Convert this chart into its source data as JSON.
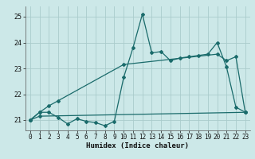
{
  "xlabel": "Humidex (Indice chaleur)",
  "bg_color": "#cce8e8",
  "line_color": "#1a6b6b",
  "grid_color": "#aacccc",
  "xlim": [
    -0.5,
    23.5
  ],
  "ylim": [
    20.6,
    25.4
  ],
  "yticks": [
    21,
    22,
    23,
    24,
    25
  ],
  "xticks": [
    0,
    1,
    2,
    3,
    4,
    5,
    6,
    7,
    8,
    9,
    10,
    11,
    12,
    13,
    14,
    15,
    16,
    17,
    18,
    19,
    20,
    21,
    22,
    23
  ],
  "series1_x": [
    0,
    1,
    2,
    3,
    4,
    5,
    6,
    7,
    8,
    9,
    10,
    11,
    12,
    13,
    14,
    15,
    16,
    17,
    18,
    19,
    20,
    21,
    22,
    23
  ],
  "series1_y": [
    21.0,
    21.3,
    21.3,
    21.1,
    20.85,
    21.05,
    20.95,
    20.9,
    20.78,
    20.95,
    22.65,
    23.8,
    25.1,
    23.6,
    23.65,
    23.3,
    23.4,
    23.45,
    23.5,
    23.55,
    24.0,
    23.05,
    21.5,
    21.3
  ],
  "series2_x": [
    0,
    1,
    2,
    3,
    10,
    20,
    21,
    22,
    23
  ],
  "series2_y": [
    21.0,
    21.3,
    21.55,
    21.75,
    23.15,
    23.55,
    23.3,
    23.45,
    21.3
  ],
  "series3_x": [
    0,
    1,
    23
  ],
  "series3_y": [
    21.0,
    21.15,
    21.3
  ],
  "markersize": 2.0,
  "linewidth": 0.9,
  "tick_fontsize": 5.5,
  "label_fontsize": 6.5
}
